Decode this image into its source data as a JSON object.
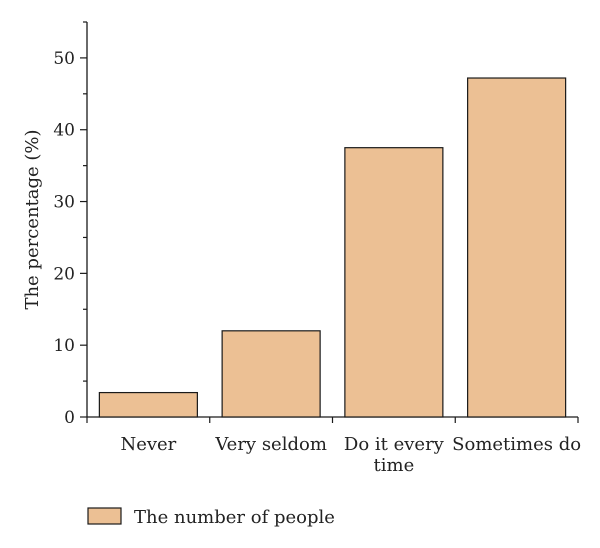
{
  "chart_data": {
    "type": "bar",
    "title": "",
    "xlabel": "",
    "ylabel": "The percentage (%)",
    "categories": [
      [
        "Never"
      ],
      [
        "Very seldom"
      ],
      [
        "Do it every",
        "time"
      ],
      [
        "Sometimes do"
      ]
    ],
    "series": [
      {
        "name": "The number of people",
        "values": [
          3.4,
          12.0,
          37.5,
          47.2
        ]
      }
    ],
    "ylim": [
      0,
      55
    ],
    "yticks": [
      0,
      10,
      20,
      30,
      40,
      50
    ],
    "y_minor_step": 5,
    "grid": false,
    "legend_position": "bottom-left",
    "colors": {
      "bar_fill": "#ecc094",
      "bar_stroke": "#1a1a1a",
      "axis": "#1a1a1a"
    }
  }
}
